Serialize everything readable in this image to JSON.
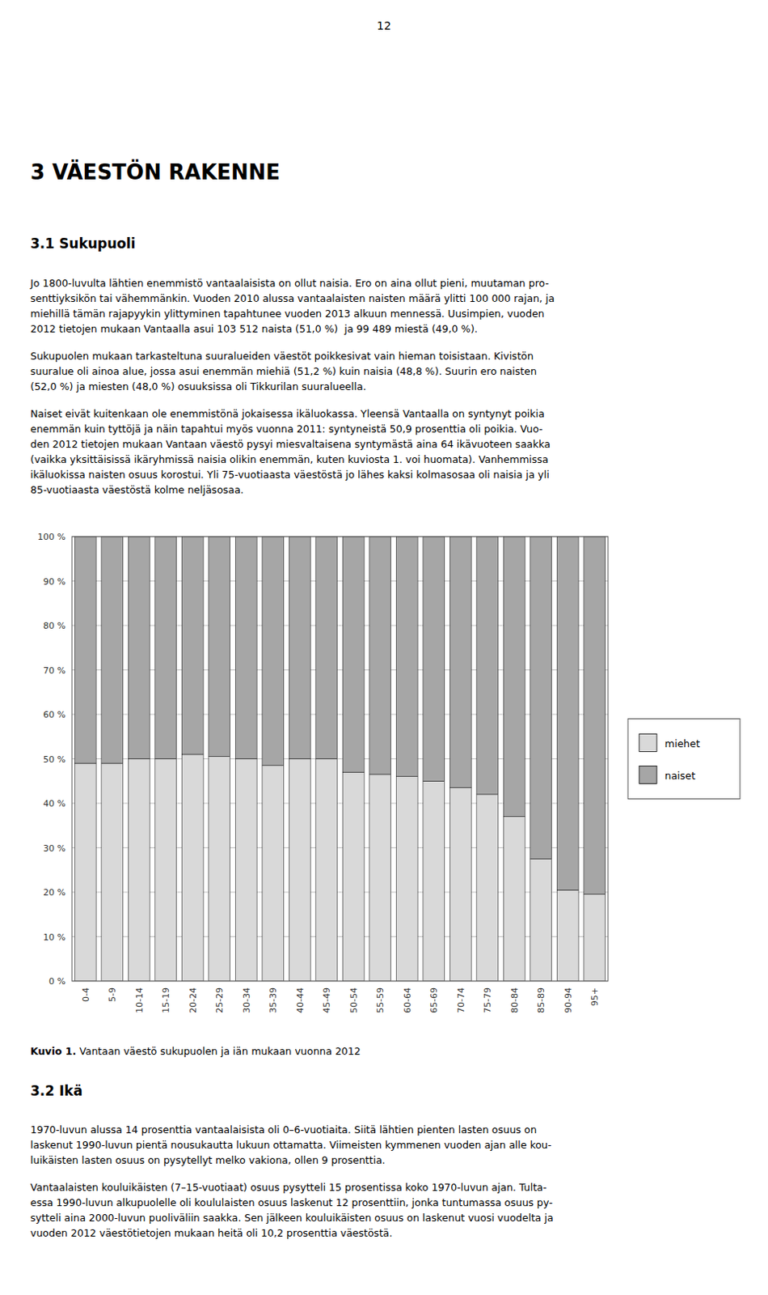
{
  "page": {
    "page_number": "12",
    "heading1": "3 VÄESTÖN RAKENNE",
    "heading2": "3.1 Sukupuoli",
    "para1_lines": [
      "Jo 1800-luvulta lähtien enemmistö vantaalaisista on ollut naisia. Ero on aina ollut pieni, muutaman pro-",
      "senttiyksikön tai vähemmänkin. Vuoden 2010 alussa vantaalaisten naisten määrä ylitti 100 000 rajan, ja",
      "miehillä tämän rajapyykin ylittyminen tapahtunee vuoden 2013 alkuun mennessä. Uusimpien, vuoden",
      "2012 tietojen mukaan Vantaalla asui 103 512 naista (51,0 %)  ja 99 489 miestä (49,0 %)."
    ],
    "para2_lines": [
      "Sukupuolen mukaan tarkasteltuna suuralueiden väestöt poikkesivat vain hieman toisistaan. Kivistön",
      "suuralue oli ainoa alue, jossa asui enemmän miehiä (51,2 %) kuin naisia (48,8 %). Suurin ero naisten",
      "(52,0 %) ja miesten (48,0 %) osuuksissa oli Tikkurilan suuralueella."
    ],
    "para3_lines": [
      "Naiset eivät kuitenkaan ole enemmistönä jokaisessa ikäluokassa. Yleensä Vantaalla on syntynyt poikia",
      "enemmän kuin tyttöjä ja näin tapahtui myös vuonna 2011: syntyneistä 50,9 prosenttia oli poikia. Vuo-",
      "den 2012 tietojen mukaan Vantaan väestö pysyi miesvaltaisena syntymästä aina 64 ikävuoteen saakka",
      "(vaikka yksittäisissä ikäryhmissä naisia olikin enemmän, kuten kuviosta 1. voi huomata). Vanhemmissa",
      "ikäluokissa naisten osuus korostui. Yli 75-vuotiaasta väestöstä jo lähes kaksi kolmasosaa oli naisia ja yli",
      "85-vuotiaasta väestöstä kolme neljäsosaa."
    ],
    "figure_caption_bold": "Kuvio 1.",
    "figure_caption_normal": " Vantaan väestö sukupuolen ja iän mukaan vuonna 2012",
    "heading3": "3.2 Ikä",
    "para4_lines": [
      "1970-luvun alussa 14 prosenttia vantaalaisista oli 0–6-vuotiaita. Siitä lähtien pienten lasten osuus on",
      "laskenut 1990-luvun pientä nousukautta lukuun ottamatta. Viimeisten kymmenen vuoden ajan alle kou-",
      "luikäisten lasten osuus on pysytellyt melko vakiona, ollen 9 prosenttia."
    ],
    "para5_lines": [
      "Vantaalaisten kouluikäisten (7–15-vuotiaat) osuus pysytteli 15 prosentissa koko 1970-luvun ajan. Tulta-",
      "essa 1990-luvun alkupuolelle oli koululaisten osuus laskenut 12 prosenttiin, jonka tuntumassa osuus py-",
      "sytteli aina 2000-luvun puoliväliin saakka. Sen jälkeen kouluikäisten osuus on laskenut vuosi vuodelta ja",
      "vuoden 2012 väestötietojen mukaan heitä oli 10,2 prosenttia väestöstä."
    ]
  },
  "chart_data": {
    "type": "bar",
    "stacked": true,
    "categories": [
      "0-4",
      "5-9",
      "10-14",
      "15-19",
      "20-24",
      "25-29",
      "30-34",
      "35-39",
      "40-44",
      "45-49",
      "50-54",
      "55-59",
      "60-64",
      "65-69",
      "70-74",
      "75-79",
      "80-84",
      "85-89",
      "90-94",
      "95+"
    ],
    "series": [
      {
        "name": "miehet",
        "color": "#d9d9d9",
        "values": [
          49.0,
          49.0,
          50.0,
          50.0,
          51.0,
          50.5,
          50.0,
          48.5,
          50.0,
          50.0,
          47.0,
          46.5,
          46.0,
          45.0,
          43.5,
          42.0,
          37.0,
          27.5,
          20.5,
          19.5
        ]
      },
      {
        "name": "naiset",
        "color": "#a6a6a6",
        "values": [
          51.0,
          51.0,
          50.0,
          50.0,
          49.0,
          49.5,
          50.0,
          51.5,
          50.0,
          50.0,
          53.0,
          53.5,
          54.0,
          55.0,
          56.5,
          58.0,
          63.0,
          72.5,
          79.5,
          80.5
        ]
      }
    ],
    "ylim": [
      0,
      100
    ],
    "yticks": [
      {
        "value": 0,
        "label": "0 %"
      },
      {
        "value": 10,
        "label": "10 %"
      },
      {
        "value": 20,
        "label": "20 %"
      },
      {
        "value": 30,
        "label": "30 %"
      },
      {
        "value": 40,
        "label": "40 %"
      },
      {
        "value": 50,
        "label": "50 %"
      },
      {
        "value": 60,
        "label": "60 %"
      },
      {
        "value": 70,
        "label": "70 %"
      },
      {
        "value": 80,
        "label": "80 %"
      },
      {
        "value": 90,
        "label": "90 %"
      },
      {
        "value": 100,
        "label": "100 %"
      }
    ],
    "grid": true,
    "legend": "right"
  }
}
